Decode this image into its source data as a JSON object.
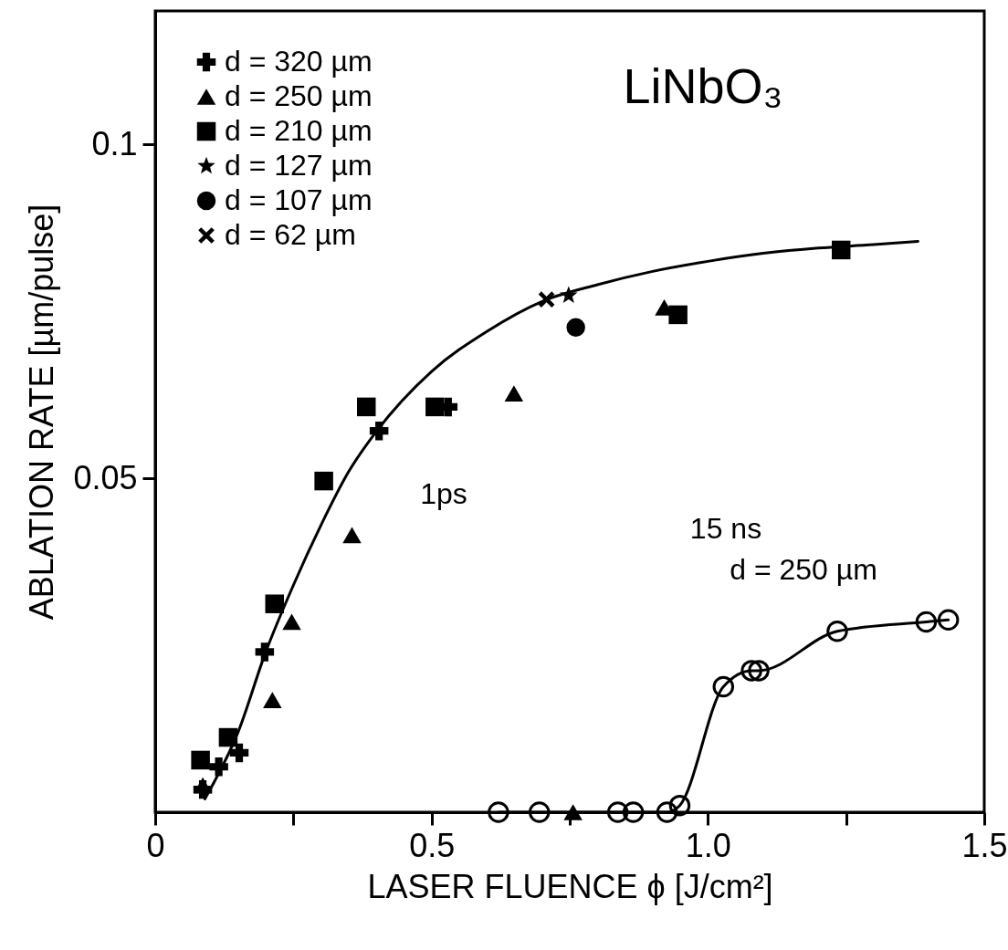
{
  "chart_data": {
    "type": "scatter",
    "xlabel": "LASER FLUENCE ϕ [J/cm²]",
    "ylabel": "ABLATION RATE [µm/pulse]",
    "xlim": [
      0,
      1.5
    ],
    "xticks": [
      0,
      {
        "value": 0.25,
        "label": null
      },
      0.5,
      {
        "value": 0.75,
        "label": null
      },
      {
        "value": 1,
        "label": "1.0"
      },
      {
        "value": 1.25,
        "label": null
      },
      1.5
    ],
    "ylim": [
      0,
      0.12
    ],
    "yticks": [
      0.05,
      0.1
    ],
    "grid": false,
    "legend": "top left",
    "annotations": [
      {
        "text": "1ps",
        "x": 0.405,
        "y": 0.0571
      },
      "LiNbO₃",
      "15 ns",
      "d = 250 µm"
    ],
    "series": [
      {
        "name": "d = 320 µm",
        "color": "#000000",
        "marker": "cross",
        "x": [
          0.086,
          0.115,
          0.152,
          0.198,
          0.405,
          0.53
        ],
        "values": [
          0.0034,
          0.0068,
          0.0089,
          0.024,
          0.0571,
          0.0607
        ]
      },
      {
        "name": "d = 250 µm",
        "color": "#000000",
        "marker": "triangle",
        "x": [
          0.086,
          0.212,
          0.247,
          0.356,
          0.649,
          0.756,
          0.921
        ],
        "values": [
          0.004,
          0.0168,
          0.0285,
          0.0415,
          0.0627,
          0,
          0.0756
        ]
      },
      {
        "name": "d = 210 µm",
        "color": "#000000",
        "marker": "square",
        "x": [
          0.082,
          0.132,
          0.216,
          0.305,
          0.382,
          0.506,
          0.946,
          1.241
        ],
        "values": [
          0.0078,
          0.0112,
          0.0312,
          0.0496,
          0.0607,
          0.0607,
          0.0745,
          0.0842
        ]
      },
      {
        "name": "d = 127 µm",
        "color": "#000000",
        "marker": "star",
        "x": [
          0.748
        ],
        "values": [
          0.0774
        ]
      },
      {
        "name": "d = 107 µm",
        "color": "#000000",
        "marker": "circle",
        "x": [
          0.761
        ],
        "values": [
          0.0726
        ]
      },
      {
        "name": "d = 62 µm",
        "color": "#000000",
        "marker": "x",
        "x": [
          0.708
        ],
        "values": [
          0.0768
        ]
      },
      {
        "type": "line",
        "color": "#000000",
        "marker": "none",
        "line_style": "solid",
        "x": [
          0.09,
          0.15,
          0.2,
          0.25,
          0.3,
          0.35,
          0.4,
          0.5,
          0.6,
          0.7,
          0.8,
          0.9,
          1.0,
          1.1,
          1.2,
          1.3,
          1.38
        ],
        "values": [
          0.002,
          0.012,
          0.024,
          0.034,
          0.043,
          0.051,
          0.057,
          0.066,
          0.072,
          0.0765,
          0.079,
          0.081,
          0.0825,
          0.0837,
          0.0845,
          0.085,
          0.0855
        ]
      },
      {
        "type": "line",
        "color": "#000000",
        "marker": "circle",
        "line_style": "solid",
        "x": [
          0.621,
          0.695,
          0.837,
          0.865,
          0.926,
          0.949,
          1.028,
          1.079,
          1.092,
          1.234,
          1.395,
          1.435
        ],
        "values": [
          0,
          0,
          0,
          0,
          0,
          0.001,
          0.0188,
          0.0212,
          0.0212,
          0.0271,
          0.0285,
          0.0288
        ]
      }
    ]
  }
}
